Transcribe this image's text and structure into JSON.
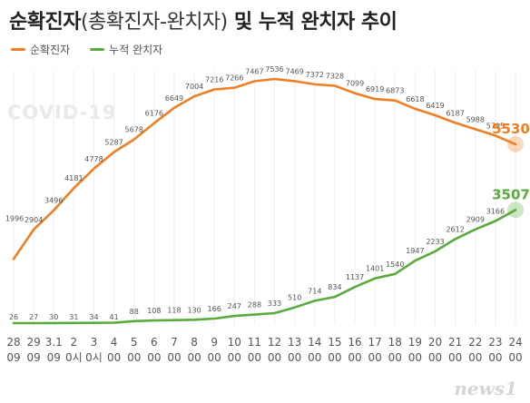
{
  "title": "순확진자",
  "title_paren": "(총확진자-완치자)",
  "title_rest": " 및 누적 완치자 추이",
  "watermark": "COVID-19",
  "logo": "news1",
  "colors": {
    "orange": "#ee7f24",
    "green": "#5aab3c"
  },
  "chart_data": {
    "type": "line",
    "categories": [
      [
        "28",
        "09"
      ],
      [
        "29",
        "09"
      ],
      [
        "3.1",
        "09"
      ],
      [
        "2",
        "0시"
      ],
      [
        "3",
        "0시"
      ],
      [
        "4",
        "00"
      ],
      [
        "5",
        "00"
      ],
      [
        "6",
        "00"
      ],
      [
        "7",
        "00"
      ],
      [
        "8",
        "00"
      ],
      [
        "9",
        "00"
      ],
      [
        "10",
        "00"
      ],
      [
        "11",
        "00"
      ],
      [
        "12",
        "00"
      ],
      [
        "13",
        "00"
      ],
      [
        "14",
        "00"
      ],
      [
        "15",
        "00"
      ],
      [
        "16",
        "00"
      ],
      [
        "17",
        "00"
      ],
      [
        "18",
        "00"
      ],
      [
        "19",
        "00"
      ],
      [
        "20",
        "00"
      ],
      [
        "21",
        "00"
      ],
      [
        "22",
        "00"
      ],
      [
        "23",
        "00"
      ],
      [
        "24",
        "00"
      ]
    ],
    "series": [
      {
        "name": "순확진자",
        "color": "#ee7f24",
        "values": [
          1996,
          2904,
          3496,
          4181,
          4778,
          5287,
          5678,
          6176,
          6649,
          7004,
          7216,
          7266,
          7467,
          7536,
          7469,
          7372,
          7328,
          7099,
          6919,
          6873,
          6618,
          6419,
          6187,
          5988,
          5795,
          5530
        ]
      },
      {
        "name": "누적 완치자",
        "color": "#5aab3c",
        "values": [
          26,
          27,
          30,
          31,
          34,
          41,
          88,
          108,
          118,
          130,
          166,
          247,
          288,
          333,
          510,
          714,
          834,
          1137,
          1401,
          1540,
          1947,
          2233,
          2612,
          2909,
          3166,
          3507
        ]
      }
    ],
    "grid": "vertical",
    "title": "순확진자(총확진자-완치자) 및 누적 완치자 추이"
  }
}
